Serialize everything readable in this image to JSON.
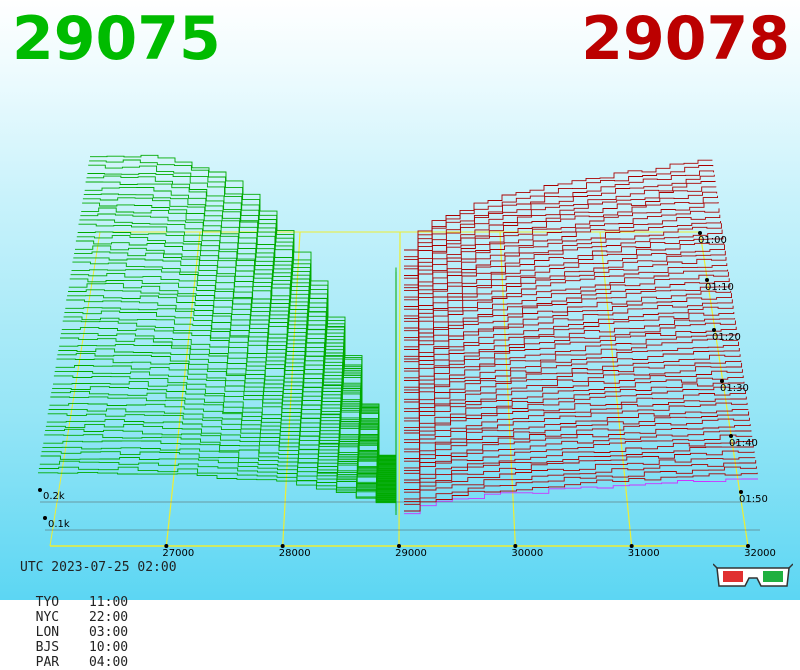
{
  "header": {
    "bid_price": "29075",
    "ask_price": "29078",
    "bid_color": "#00bb00",
    "ask_color": "#bb0000"
  },
  "clock": {
    "utc": "UTC 2023-07-25 02:00",
    "zones": [
      {
        "city": "TYO",
        "time": "11:00"
      },
      {
        "city": "NYC",
        "time": "22:00"
      },
      {
        "city": "LON",
        "time": "03:00"
      },
      {
        "city": "BJS",
        "time": "10:00"
      },
      {
        "city": "PAR",
        "time": "04:00"
      }
    ]
  },
  "icons": {
    "glasses": "3d-glasses-icon"
  },
  "chart_data": {
    "type": "3d-depth-surface",
    "x_ticks": [
      "27000",
      "28000",
      "29000",
      "30000",
      "31000",
      "32000"
    ],
    "x_values": [
      27000,
      28000,
      29000,
      30000,
      31000,
      32000
    ],
    "x_range": [
      26000,
      32000
    ],
    "mid_price": 29076,
    "time_ticks": [
      "01:00",
      "01:10",
      "01:20",
      "01:30",
      "01:40",
      "01:50"
    ],
    "volume_ticks": [
      "0.2k",
      "0.1k"
    ],
    "bid_color": "#00aa00",
    "ask_color": "#aa0000",
    "latest_ask_color": "#cc33ff",
    "grid_color": "#eeee33",
    "snapshots": 60,
    "bid_depth_at_26000": [
      0.26,
      0.55,
      0.85
    ],
    "ask_depth_at_32000": [
      0.19,
      0.5,
      0.85
    ],
    "legend": "none"
  }
}
